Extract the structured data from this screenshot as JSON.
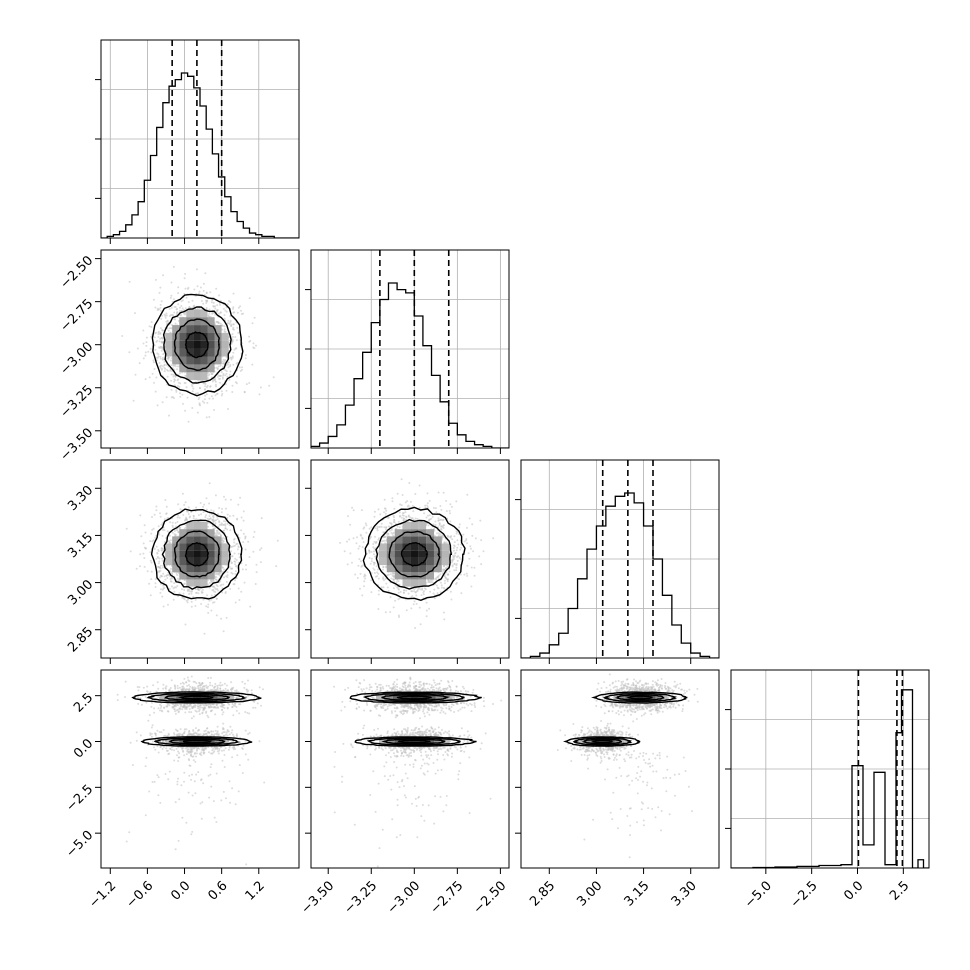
{
  "chart_data": {
    "type": "corner",
    "title": "",
    "parameters": [
      "",
      "",
      "",
      ""
    ],
    "axes": [
      {
        "range": [
          -1.35,
          1.85
        ],
        "ticks": [
          -1.2,
          -0.6,
          0.0,
          0.6,
          1.2
        ],
        "tick_labels": [
          "−1.2",
          "−0.6",
          "0.0",
          "0.6",
          "1.2"
        ]
      },
      {
        "range": [
          -3.6,
          -2.45
        ],
        "ticks": [
          -3.5,
          -3.25,
          -3.0,
          -2.75,
          -2.5
        ],
        "tick_labels": [
          "−3.50",
          "−3.25",
          "−3.00",
          "−2.75",
          "−2.50"
        ]
      },
      {
        "range": [
          2.76,
          3.39
        ],
        "ticks": [
          2.85,
          3.0,
          3.15,
          3.3
        ],
        "tick_labels": [
          "2.85",
          "3.00",
          "3.15",
          "3.30"
        ]
      },
      {
        "range": [
          -6.9,
          3.9
        ],
        "ticks": [
          -5.0,
          -2.5,
          0.0,
          2.5
        ],
        "tick_labels": [
          "−5.0",
          "−2.5",
          "0.0",
          "2.5"
        ]
      }
    ],
    "histograms": [
      {
        "parameter_index": 0,
        "bins": [
          -1.35,
          -1.25,
          -1.15,
          -1.05,
          -0.95,
          -0.85,
          -0.75,
          -0.65,
          -0.55,
          -0.45,
          -0.35,
          -0.25,
          -0.15,
          -0.05,
          0.05,
          0.15,
          0.25,
          0.35,
          0.45,
          0.55,
          0.65,
          0.75,
          0.85,
          0.95,
          1.05,
          1.15,
          1.25,
          1.35,
          1.45,
          1.55,
          1.65,
          1.75,
          1.85
        ],
        "counts": [
          0,
          1,
          2,
          4,
          8,
          14,
          22,
          35,
          50,
          67,
          82,
          92,
          96,
          100,
          98,
          91,
          80,
          66,
          51,
          37,
          25,
          16,
          10,
          6,
          3,
          2,
          1,
          1,
          0,
          0,
          0,
          0
        ],
        "quantiles": [
          -0.2,
          0.2,
          0.6
        ],
        "ylim": [
          0,
          120
        ]
      },
      {
        "parameter_index": 1,
        "bins": [
          -3.6,
          -3.55,
          -3.5,
          -3.45,
          -3.4,
          -3.35,
          -3.3,
          -3.25,
          -3.2,
          -3.15,
          -3.1,
          -3.05,
          -3.0,
          -2.95,
          -2.9,
          -2.85,
          -2.8,
          -2.75,
          -2.7,
          -2.65,
          -2.6,
          -2.55,
          -2.5,
          -2.45
        ],
        "counts": [
          1,
          3,
          7,
          14,
          26,
          42,
          58,
          76,
          90,
          100,
          96,
          94,
          80,
          62,
          44,
          28,
          15,
          8,
          4,
          2,
          1,
          0,
          0
        ],
        "quantiles": [
          -3.2,
          -3.0,
          -2.8
        ],
        "ylim": [
          0,
          120
        ]
      },
      {
        "parameter_index": 2,
        "bins": [
          2.76,
          2.79,
          2.82,
          2.85,
          2.88,
          2.91,
          2.94,
          2.97,
          3.0,
          3.03,
          3.06,
          3.09,
          3.12,
          3.15,
          3.18,
          3.21,
          3.24,
          3.27,
          3.3,
          3.33,
          3.36,
          3.39
        ],
        "counts": [
          0,
          1,
          3,
          8,
          15,
          30,
          48,
          66,
          80,
          92,
          98,
          100,
          94,
          80,
          60,
          38,
          20,
          9,
          3,
          1,
          0
        ],
        "quantiles": [
          3.02,
          3.1,
          3.18
        ],
        "ylim": [
          0,
          120
        ]
      },
      {
        "parameter_index": 3,
        "bins": [
          -6.9,
          -5.7,
          -4.5,
          -3.3,
          -2.1,
          -0.9,
          -0.3,
          0.3,
          0.9,
          1.5,
          2.1,
          2.4,
          2.7,
          3.0,
          3.3,
          3.6,
          3.9
        ],
        "counts": [
          0,
          0.3,
          0.6,
          1,
          1.5,
          2,
          62,
          14,
          58,
          2,
          82,
          108,
          108,
          0,
          5,
          0
        ],
        "quantiles": [
          0.05,
          2.15,
          2.45
        ],
        "ylim": [
          0,
          120
        ]
      }
    ],
    "joint_2d": [
      {
        "x_index": 0,
        "y_index": 1,
        "center": [
          0.2,
          -3.0
        ],
        "sd": [
          0.3,
          0.12
        ],
        "rho": 0.0
      },
      {
        "x_index": 0,
        "y_index": 2,
        "center": [
          0.2,
          3.09
        ],
        "sd": [
          0.3,
          0.06
        ],
        "rho": 0.0
      },
      {
        "x_index": 1,
        "y_index": 2,
        "center": [
          -3.0,
          3.09
        ],
        "sd": [
          0.12,
          0.06
        ],
        "rho": -0.1
      },
      {
        "x_index": 0,
        "y_index": 3,
        "modes": [
          {
            "center": [
              0.2,
              2.4
            ],
            "sd": [
              0.35,
              0.35
            ],
            "weight": 0.55
          },
          {
            "center": [
              0.2,
              0.0
            ],
            "sd": [
              0.3,
              0.3
            ],
            "weight": 0.4
          }
        ]
      },
      {
        "x_index": 1,
        "y_index": 3,
        "modes": [
          {
            "center": [
              -3.0,
              2.4
            ],
            "sd": [
              0.13,
              0.35
            ],
            "weight": 0.55
          },
          {
            "center": [
              -3.0,
              0.0
            ],
            "sd": [
              0.12,
              0.3
            ],
            "weight": 0.4
          }
        ]
      },
      {
        "x_index": 2,
        "y_index": 3,
        "modes": [
          {
            "center": [
              3.14,
              2.4
            ],
            "sd": [
              0.05,
              0.35
            ],
            "weight": 0.55
          },
          {
            "center": [
              3.02,
              0.0
            ],
            "sd": [
              0.04,
              0.3
            ],
            "weight": 0.4
          }
        ]
      }
    ],
    "contour_levels_sigma": [
      0.5,
      1.0,
      1.5,
      2.0
    ],
    "grid": true,
    "legend": "none",
    "colors": {
      "points": "#bfbfbf",
      "lines": "#000000",
      "grid": "#b0b0b0"
    }
  }
}
